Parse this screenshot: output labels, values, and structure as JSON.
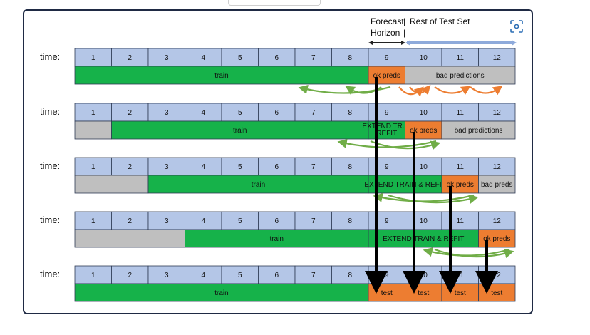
{
  "header": {
    "forecast": "Forecast",
    "horizon": "Horizon",
    "rest": "Rest of Test Set",
    "sep": "|"
  },
  "time_label": "time:",
  "rows": [
    {
      "cells": [
        "1",
        "2",
        "3",
        "4",
        "5",
        "6",
        "7",
        "8",
        "9",
        "10",
        "11",
        "12"
      ],
      "segments": [
        {
          "kind": "train",
          "label": "train",
          "from": 1,
          "to": 8
        },
        {
          "kind": "ok",
          "label": "ok preds",
          "from": 9,
          "to": 9
        },
        {
          "kind": "bad",
          "label": "bad predictions",
          "from": 10,
          "to": 12
        }
      ]
    },
    {
      "cells": [
        "1",
        "2",
        "3",
        "4",
        "5",
        "6",
        "7",
        "8",
        "9",
        "10",
        "11",
        "12"
      ],
      "segments": [
        {
          "kind": "gray",
          "label": "",
          "from": 1,
          "to": 1
        },
        {
          "kind": "train",
          "label": "train",
          "from": 2,
          "to": 8
        },
        {
          "kind": "extend",
          "label": "EXTEND TR. &\nREFIT",
          "from": 9,
          "to": 9
        },
        {
          "kind": "ok",
          "label": "ok preds",
          "from": 10,
          "to": 10
        },
        {
          "kind": "bad",
          "label": "bad predictions",
          "from": 11,
          "to": 12
        }
      ]
    },
    {
      "cells": [
        "1",
        "2",
        "3",
        "4",
        "5",
        "6",
        "7",
        "8",
        "9",
        "10",
        "11",
        "12"
      ],
      "segments": [
        {
          "kind": "gray",
          "label": "",
          "from": 1,
          "to": 2
        },
        {
          "kind": "train",
          "label": "train",
          "from": 3,
          "to": 8
        },
        {
          "kind": "extend",
          "label": "EXTEND TRAIN & REFIT",
          "from": 9,
          "to": 10
        },
        {
          "kind": "ok",
          "label": "ok preds",
          "from": 11,
          "to": 11
        },
        {
          "kind": "bad",
          "label": "bad preds",
          "from": 12,
          "to": 12
        }
      ]
    },
    {
      "cells": [
        "1",
        "2",
        "3",
        "4",
        "5",
        "6",
        "7",
        "8",
        "9",
        "10",
        "11",
        "12"
      ],
      "segments": [
        {
          "kind": "gray",
          "label": "",
          "from": 1,
          "to": 3
        },
        {
          "kind": "train",
          "label": "train",
          "from": 4,
          "to": 8
        },
        {
          "kind": "extend",
          "label": "EXTEND TRAIN & REFIT",
          "from": 9,
          "to": 11
        },
        {
          "kind": "ok",
          "label": "ok preds",
          "from": 12,
          "to": 12
        }
      ]
    },
    {
      "cells": [
        "1",
        "2",
        "3",
        "4",
        "5",
        "6",
        "7",
        "8",
        "9",
        "10",
        "11",
        "12"
      ],
      "segments": [
        {
          "kind": "train",
          "label": "train",
          "from": 1,
          "to": 8
        },
        {
          "kind": "test",
          "label": "test",
          "from": 9,
          "to": 9
        },
        {
          "kind": "test",
          "label": "test",
          "from": 10,
          "to": 10
        },
        {
          "kind": "test",
          "label": "test",
          "from": 11,
          "to": 11
        },
        {
          "kind": "test",
          "label": "test",
          "from": 12,
          "to": 12
        }
      ]
    }
  ],
  "colors": {
    "cell": "#b4c6e7",
    "train": "#16b24a",
    "ok": "#ed7d31",
    "bad": "#bfbfbf",
    "gray": "#bfbfbf",
    "extend": "#16b24a",
    "test": "#ed7d31",
    "curve_green": "#70ad47",
    "curve_orange": "#ed7d31",
    "drop_arrow": "#000000",
    "horizon_arrow": "#8eaadb"
  },
  "icons": {
    "scan": "scan-focus-icon"
  }
}
